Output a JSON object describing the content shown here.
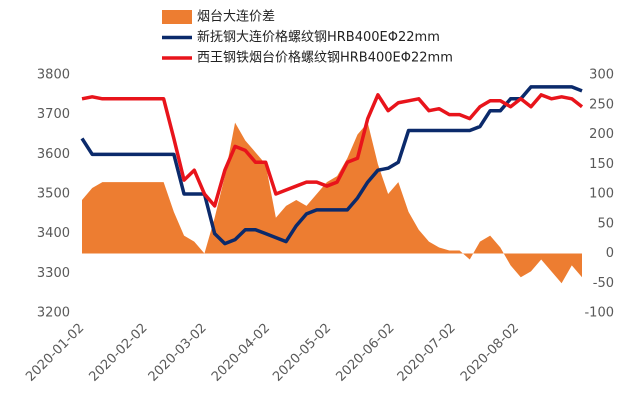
{
  "chart_data": {
    "type": "line",
    "x": [
      "2020-01-02",
      "2020-01-07",
      "2020-01-12",
      "2020-01-17",
      "2020-01-22",
      "2020-01-27",
      "2020-02-01",
      "2020-02-06",
      "2020-02-11",
      "2020-02-16",
      "2020-02-21",
      "2020-02-26",
      "2020-03-02",
      "2020-03-07",
      "2020-03-12",
      "2020-03-17",
      "2020-03-22",
      "2020-03-27",
      "2020-04-01",
      "2020-04-06",
      "2020-04-11",
      "2020-04-16",
      "2020-04-21",
      "2020-04-26",
      "2020-05-01",
      "2020-05-06",
      "2020-05-11",
      "2020-05-16",
      "2020-05-21",
      "2020-05-26",
      "2020-05-31",
      "2020-06-05",
      "2020-06-10",
      "2020-06-15",
      "2020-06-20",
      "2020-06-25",
      "2020-06-30",
      "2020-07-05",
      "2020-07-10",
      "2020-07-15",
      "2020-07-20",
      "2020-07-25",
      "2020-07-30",
      "2020-08-04",
      "2020-08-09",
      "2020-08-14",
      "2020-08-19",
      "2020-08-24",
      "2020-08-29",
      "2020-09-03"
    ],
    "series": [
      {
        "name": "烟台大连价差",
        "type": "area",
        "axis": "y2",
        "color": "#ed7d31",
        "values": [
          90,
          110,
          120,
          120,
          120,
          120,
          120,
          120,
          120,
          70,
          30,
          20,
          0,
          60,
          130,
          220,
          190,
          170,
          150,
          60,
          80,
          90,
          80,
          100,
          120,
          130,
          160,
          200,
          220,
          150,
          100,
          120,
          70,
          40,
          20,
          10,
          5,
          5,
          -10,
          20,
          30,
          10,
          -20,
          -40,
          -30,
          -10,
          -30,
          -50,
          -20,
          -40
        ]
      },
      {
        "name": "新抚钢大连价格螺纹钢HRB400EΦ22mm",
        "type": "line",
        "color": "#0b2a6b",
        "values": [
          3640,
          3600,
          3600,
          3600,
          3600,
          3600,
          3600,
          3600,
          3600,
          3600,
          3500,
          3500,
          3500,
          3400,
          3375,
          3385,
          3410,
          3410,
          3400,
          3390,
          3380,
          3420,
          3450,
          3460,
          3460,
          3460,
          3460,
          3490,
          3530,
          3560,
          3565,
          3580,
          3660,
          3660,
          3660,
          3660,
          3660,
          3660,
          3660,
          3670,
          3710,
          3710,
          3740,
          3740,
          3770,
          3770,
          3770,
          3770,
          3770,
          3760
        ]
      },
      {
        "name": "西王钢铁烟台价格螺纹钢HRB400EΦ22mm",
        "type": "line",
        "color": "#e8141b",
        "values": [
          3740,
          3745,
          3740,
          3740,
          3740,
          3740,
          3740,
          3740,
          3740,
          3640,
          3535,
          3560,
          3500,
          3470,
          3560,
          3620,
          3610,
          3580,
          3580,
          3500,
          3510,
          3520,
          3530,
          3530,
          3520,
          3530,
          3580,
          3590,
          3690,
          3750,
          3710,
          3730,
          3735,
          3740,
          3710,
          3715,
          3700,
          3700,
          3690,
          3720,
          3735,
          3735,
          3720,
          3740,
          3720,
          3750,
          3740,
          3745,
          3740,
          3720
        ]
      }
    ],
    "xlim": [
      "2020-01-02",
      "2020-09-03"
    ],
    "xticks": [
      "2020-01-02",
      "2020-02-02",
      "2020-03-02",
      "2020-04-02",
      "2020-05-02",
      "2020-06-02",
      "2020-07-02",
      "2020-08-02"
    ],
    "ylim": [
      3200,
      3800
    ],
    "yticks": [
      3200,
      3300,
      3400,
      3500,
      3600,
      3700,
      3800
    ],
    "y2lim": [
      -100,
      300
    ],
    "y2ticks": [
      -100,
      -50,
      0,
      50,
      100,
      150,
      200,
      250,
      300
    ]
  }
}
